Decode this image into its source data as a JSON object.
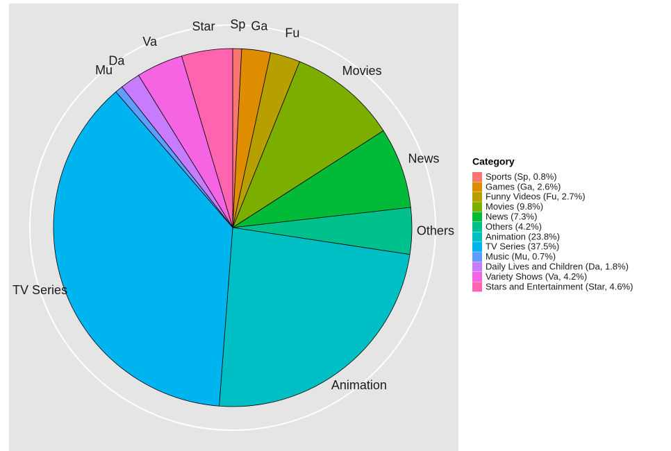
{
  "chart_data": {
    "type": "pie",
    "legend_title": "Category",
    "categories": [
      "Sp",
      "Ga",
      "Fu",
      "Movies",
      "News",
      "Others",
      "Animation",
      "TV Series",
      "Mu",
      "Da",
      "Va",
      "Star"
    ],
    "labels": [
      "Sports (Sp, 0.8%)",
      "Games (Ga, 2.6%)",
      "Funny Videos (Fu, 2.7%)",
      "Movies (9.8%)",
      "News (7.3%)",
      "Others (4.2%)",
      "Animation (23.8%)",
      "TV Series (37.5%)",
      "Music (Mu, 0.7%)",
      "Daily Lives and Children (Da, 1.8%)",
      "Variety Shows (Va, 4.2%)",
      "Stars and Entertainment (Star, 4.6%)"
    ],
    "values": [
      0.8,
      2.6,
      2.7,
      9.8,
      7.3,
      4.2,
      23.8,
      37.5,
      0.7,
      1.8,
      4.2,
      4.6
    ],
    "colors": [
      "#F8766D",
      "#DE8C00",
      "#B79F00",
      "#7CAE00",
      "#00BA38",
      "#00C08B",
      "#00BFC4",
      "#00B4F0",
      "#619CFF",
      "#C77CFF",
      "#F564E3",
      "#FF64B0"
    ]
  }
}
